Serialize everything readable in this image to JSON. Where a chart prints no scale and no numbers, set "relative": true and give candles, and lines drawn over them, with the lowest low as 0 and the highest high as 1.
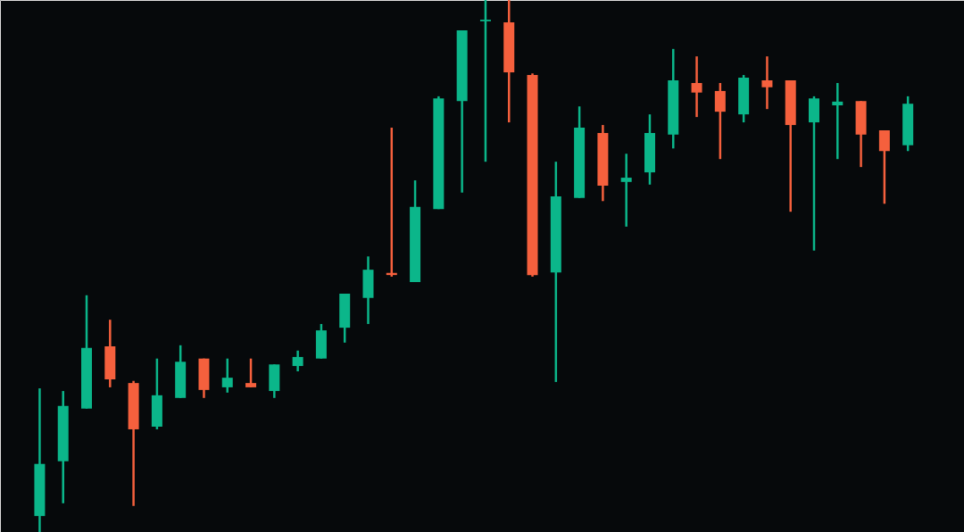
{
  "chart_data": {
    "type": "candlestick",
    "relative": true,
    "categories": [
      null,
      null,
      null,
      null,
      null,
      null,
      null,
      null,
      null,
      null,
      null,
      null,
      null,
      null,
      null,
      null,
      null,
      null,
      null,
      null,
      null,
      null,
      null,
      null,
      null,
      null,
      null,
      null,
      null,
      null,
      null,
      null,
      null,
      null,
      null,
      null,
      null,
      null
    ],
    "ohlc": [
      [
        0.03,
        0.27,
        0,
        0.128
      ],
      [
        0.133,
        0.265,
        0.054,
        0.237
      ],
      [
        0.232,
        0.445,
        0.232,
        0.346
      ],
      [
        0.349,
        0.399,
        0.272,
        0.287
      ],
      [
        0.28,
        0.284,
        0.049,
        0.193
      ],
      [
        0.198,
        0.326,
        0.193,
        0.257
      ],
      [
        0.252,
        0.351,
        0.252,
        0.32
      ],
      [
        0.326,
        0.326,
        0.252,
        0.267
      ],
      [
        0.272,
        0.326,
        0.262,
        0.29
      ],
      [
        0.28,
        0.326,
        0.272,
        0.272
      ],
      [
        0.265,
        0.315,
        0.252,
        0.315
      ],
      [
        0.312,
        0.341,
        0.302,
        0.329
      ],
      [
        0.326,
        0.391,
        0.326,
        0.379
      ],
      [
        0.384,
        0.448,
        0.356,
        0.448
      ],
      [
        0.44,
        0.518,
        0.391,
        0.493
      ],
      [
        0.487,
        0.76,
        0.48,
        0.483
      ],
      [
        0.47,
        0.661,
        0.47,
        0.611
      ],
      [
        0.607,
        0.819,
        0.607,
        0.815
      ],
      [
        0.81,
        0.943,
        0.638,
        0.943
      ],
      [
        0.96,
        1,
        0.696,
        0.963
      ],
      [
        0.958,
        1,
        0.77,
        0.864
      ],
      [
        0.859,
        0.862,
        0.48,
        0.483
      ],
      [
        0.488,
        0.696,
        0.282,
        0.631
      ],
      [
        0.628,
        0.8,
        0.628,
        0.76
      ],
      [
        0.75,
        0.765,
        0.622,
        0.651
      ],
      [
        0.658,
        0.711,
        0.574,
        0.666
      ],
      [
        0.676,
        0.785,
        0.653,
        0.75
      ],
      [
        0.747,
        0.908,
        0.721,
        0.849
      ],
      [
        0.844,
        0.894,
        0.78,
        0.826
      ],
      [
        0.829,
        0.844,
        0.701,
        0.79
      ],
      [
        0.785,
        0.859,
        0.77,
        0.854
      ],
      [
        0.849,
        0.894,
        0.795,
        0.836
      ],
      [
        0.849,
        0.849,
        0.602,
        0.765
      ],
      [
        0.77,
        0.819,
        0.529,
        0.815
      ],
      [
        0.802,
        0.844,
        0.701,
        0.809
      ],
      [
        0.81,
        0.81,
        0.686,
        0.747
      ],
      [
        0.755,
        0.755,
        0.617,
        0.716
      ],
      [
        0.727,
        0.819,
        0.716,
        0.805
      ]
    ],
    "colors": [
      "#0bb68a",
      "#0bb68a",
      "#0bb68a",
      "#f5603d",
      "#f5603d",
      "#0bb68a",
      "#0bb68a",
      "#f5603d",
      "#0bb68a",
      "#f5603d",
      "#0bb68a",
      "#0bb68a",
      "#0bb68a",
      "#0bb68a",
      "#0bb68a",
      "#f5603d",
      "#0bb68a",
      "#0bb68a",
      "#0bb68a",
      "#0bb68a",
      "#f5603d",
      "#f5603d",
      "#0bb68a",
      "#0bb68a",
      "#f5603d",
      "#0bb68a",
      "#0bb68a",
      "#0bb68a",
      "#f5603d",
      "#f5603d",
      "#0bb68a",
      "#f5603d",
      "#f5603d",
      "#0bb68a",
      "#0bb68a",
      "#f5603d",
      "#f5603d",
      "#0bb68a"
    ]
  }
}
